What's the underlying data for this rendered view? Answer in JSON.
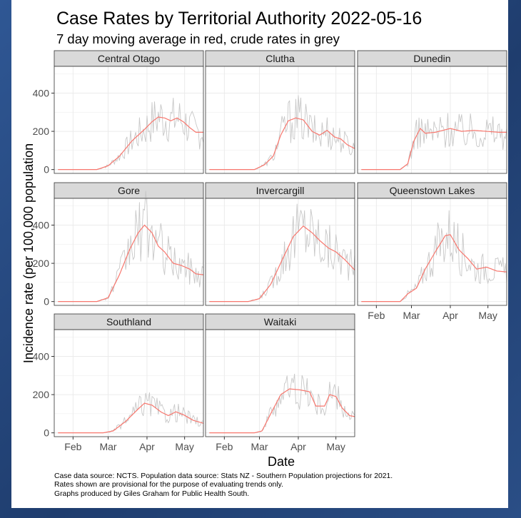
{
  "title": "Case Rates by Territorial Authority 2022-05-16",
  "subtitle": "7 day moving average in red, crude rates in grey",
  "caption": [
    "Case data source: NCTS. Population data source: Stats NZ -  Southern Population projections for 2021.",
    "Rates shown are provisional for the purpose of evaluating trends only.",
    "Graphs produced by Giles Graham for Public Health South."
  ],
  "colors": {
    "background": "#24467c",
    "moving_average": "#f8766d",
    "crude": "#c8c8c8",
    "strip": "#d9d9d9",
    "grid": "#ebebeb"
  },
  "chart_data": {
    "type": "line",
    "xlabel": "Date",
    "ylabel": "Incidence rate (per 100,000 population",
    "x_ticks": [
      "Feb",
      "Mar",
      "Apr",
      "May"
    ],
    "x_tick_dates": [
      "2022-02-01",
      "2022-03-01",
      "2022-04-01",
      "2022-05-01"
    ],
    "x_range": [
      "2022-01-17",
      "2022-05-16"
    ],
    "y_ticks": [
      0,
      200,
      400
    ],
    "ylim": [
      -20,
      540
    ],
    "grid": true,
    "facets": [
      {
        "name": "Central Otago",
        "ma": [
          [
            "2022-01-20",
            0
          ],
          [
            "2022-02-20",
            0
          ],
          [
            "2022-03-01",
            20
          ],
          [
            "2022-03-10",
            70
          ],
          [
            "2022-03-20",
            150
          ],
          [
            "2022-03-30",
            210
          ],
          [
            "2022-04-05",
            250
          ],
          [
            "2022-04-10",
            275
          ],
          [
            "2022-04-15",
            270
          ],
          [
            "2022-04-20",
            255
          ],
          [
            "2022-04-25",
            270
          ],
          [
            "2022-04-30",
            250
          ],
          [
            "2022-05-05",
            220
          ],
          [
            "2022-05-10",
            195
          ],
          [
            "2022-05-16",
            195
          ]
        ],
        "crude_max": 410
      },
      {
        "name": "Clutha",
        "ma": [
          [
            "2022-01-20",
            0
          ],
          [
            "2022-02-25",
            0
          ],
          [
            "2022-03-05",
            25
          ],
          [
            "2022-03-12",
            70
          ],
          [
            "2022-03-18",
            180
          ],
          [
            "2022-03-24",
            255
          ],
          [
            "2022-03-30",
            270
          ],
          [
            "2022-04-05",
            260
          ],
          [
            "2022-04-12",
            200
          ],
          [
            "2022-04-18",
            180
          ],
          [
            "2022-04-24",
            205
          ],
          [
            "2022-04-30",
            170
          ],
          [
            "2022-05-05",
            160
          ],
          [
            "2022-05-10",
            130
          ],
          [
            "2022-05-16",
            110
          ]
        ],
        "crude_max": 370
      },
      {
        "name": "Dunedin",
        "ma": [
          [
            "2022-01-20",
            0
          ],
          [
            "2022-02-20",
            0
          ],
          [
            "2022-02-26",
            30
          ],
          [
            "2022-03-03",
            150
          ],
          [
            "2022-03-08",
            215
          ],
          [
            "2022-03-12",
            190
          ],
          [
            "2022-03-20",
            195
          ],
          [
            "2022-04-01",
            215
          ],
          [
            "2022-04-10",
            200
          ],
          [
            "2022-04-20",
            205
          ],
          [
            "2022-04-30",
            200
          ],
          [
            "2022-05-10",
            195
          ],
          [
            "2022-05-16",
            195
          ]
        ],
        "crude_max": 320
      },
      {
        "name": "Gore",
        "ma": [
          [
            "2022-01-20",
            0
          ],
          [
            "2022-02-20",
            0
          ],
          [
            "2022-03-01",
            20
          ],
          [
            "2022-03-10",
            140
          ],
          [
            "2022-03-18",
            270
          ],
          [
            "2022-03-25",
            360
          ],
          [
            "2022-03-30",
            400
          ],
          [
            "2022-04-05",
            360
          ],
          [
            "2022-04-10",
            290
          ],
          [
            "2022-04-15",
            260
          ],
          [
            "2022-04-22",
            200
          ],
          [
            "2022-04-28",
            190
          ],
          [
            "2022-05-05",
            170
          ],
          [
            "2022-05-10",
            145
          ],
          [
            "2022-05-16",
            140
          ]
        ],
        "crude_max": 540
      },
      {
        "name": "Invercargill",
        "ma": [
          [
            "2022-01-20",
            0
          ],
          [
            "2022-02-20",
            0
          ],
          [
            "2022-03-01",
            15
          ],
          [
            "2022-03-10",
            90
          ],
          [
            "2022-03-20",
            230
          ],
          [
            "2022-03-28",
            340
          ],
          [
            "2022-04-05",
            395
          ],
          [
            "2022-04-12",
            360
          ],
          [
            "2022-04-18",
            320
          ],
          [
            "2022-04-25",
            280
          ],
          [
            "2022-05-01",
            260
          ],
          [
            "2022-05-08",
            220
          ],
          [
            "2022-05-16",
            165
          ]
        ],
        "crude_max": 490
      },
      {
        "name": "Queenstown Lakes",
        "ma": [
          [
            "2022-01-20",
            0
          ],
          [
            "2022-02-20",
            0
          ],
          [
            "2022-02-26",
            40
          ],
          [
            "2022-03-05",
            70
          ],
          [
            "2022-03-12",
            170
          ],
          [
            "2022-03-20",
            260
          ],
          [
            "2022-03-28",
            345
          ],
          [
            "2022-04-01",
            350
          ],
          [
            "2022-04-08",
            270
          ],
          [
            "2022-04-15",
            225
          ],
          [
            "2022-04-22",
            170
          ],
          [
            "2022-04-30",
            180
          ],
          [
            "2022-05-08",
            160
          ],
          [
            "2022-05-16",
            155
          ]
        ],
        "crude_max": 440
      },
      {
        "name": "Southland",
        "ma": [
          [
            "2022-01-20",
            0
          ],
          [
            "2022-02-25",
            0
          ],
          [
            "2022-03-05",
            10
          ],
          [
            "2022-03-15",
            60
          ],
          [
            "2022-03-25",
            125
          ],
          [
            "2022-03-30",
            155
          ],
          [
            "2022-04-05",
            145
          ],
          [
            "2022-04-12",
            110
          ],
          [
            "2022-04-18",
            90
          ],
          [
            "2022-04-24",
            110
          ],
          [
            "2022-04-30",
            95
          ],
          [
            "2022-05-08",
            65
          ],
          [
            "2022-05-16",
            50
          ]
        ],
        "crude_max": 200
      },
      {
        "name": "Waitaki",
        "ma": [
          [
            "2022-01-20",
            0
          ],
          [
            "2022-02-25",
            0
          ],
          [
            "2022-03-03",
            10
          ],
          [
            "2022-03-10",
            100
          ],
          [
            "2022-03-18",
            200
          ],
          [
            "2022-03-25",
            230
          ],
          [
            "2022-04-02",
            225
          ],
          [
            "2022-04-10",
            215
          ],
          [
            "2022-04-15",
            140
          ],
          [
            "2022-04-22",
            140
          ],
          [
            "2022-04-26",
            200
          ],
          [
            "2022-05-01",
            190
          ],
          [
            "2022-05-06",
            130
          ],
          [
            "2022-05-12",
            90
          ],
          [
            "2022-05-16",
            85
          ]
        ],
        "crude_max": 380
      }
    ]
  }
}
